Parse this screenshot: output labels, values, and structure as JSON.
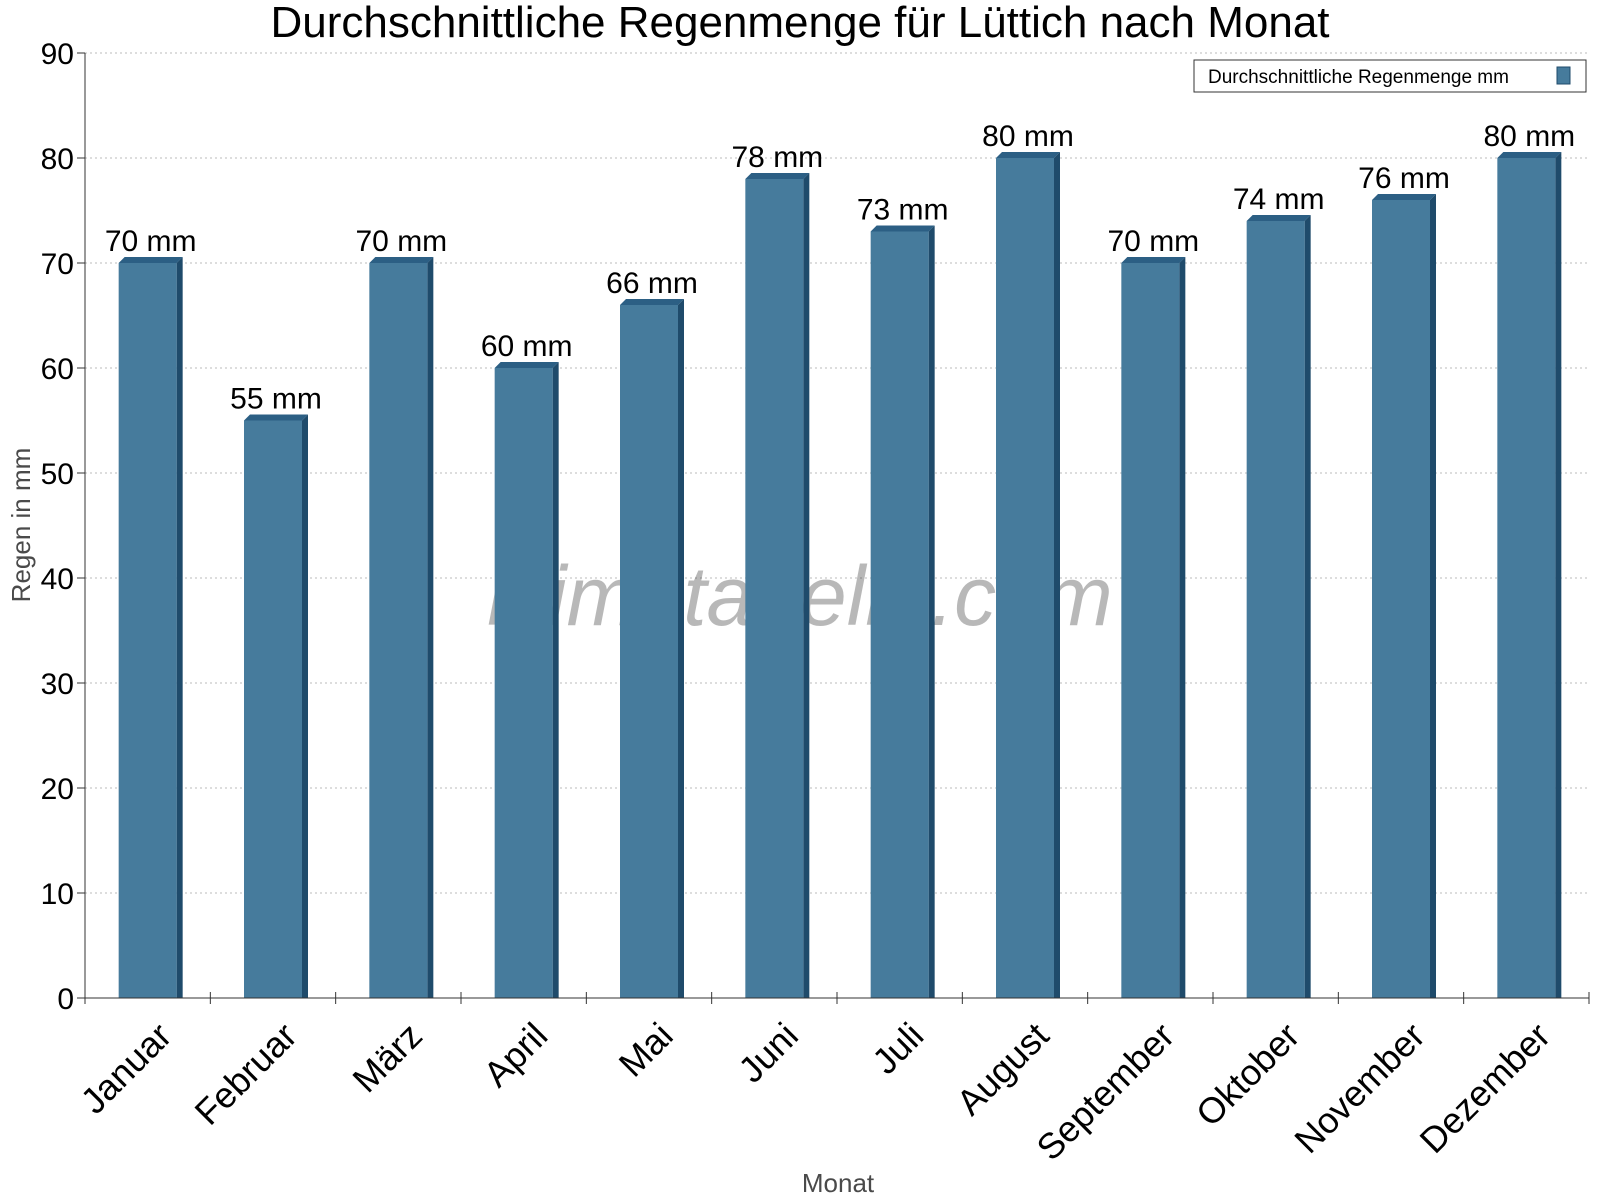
{
  "chart_data": {
    "type": "bar",
    "title": "Durchschnittliche Regenmenge für Lüttich nach Monat",
    "xlabel": "Monat",
    "ylabel": "Regen in mm",
    "ylim": [
      0,
      90
    ],
    "yticks": [
      0,
      10,
      20,
      30,
      40,
      50,
      60,
      70,
      80,
      90
    ],
    "grid": true,
    "legend_position": "top-right",
    "categories": [
      "Januar",
      "Februar",
      "März",
      "April",
      "Mai",
      "Juni",
      "Juli",
      "August",
      "September",
      "Oktober",
      "November",
      "Dezember"
    ],
    "series": [
      {
        "name": "Durchschnittliche Regenmenge mm",
        "values": [
          70,
          55,
          70,
          60,
          66,
          78,
          73,
          80,
          70,
          74,
          76,
          80
        ],
        "data_labels": [
          "70 mm",
          "55 mm",
          "70 mm",
          "60 mm",
          "66 mm",
          "78 mm",
          "73 mm",
          "80 mm",
          "70 mm",
          "74 mm",
          "76 mm",
          "80 mm"
        ]
      }
    ],
    "colors": {
      "bar": "#467b9c",
      "bar_side": "#1f4b6b",
      "bar_top": "#2c5f84",
      "grid": "#bbbbbb",
      "axis": "#333333"
    },
    "watermark": "klimatabelle.com"
  }
}
